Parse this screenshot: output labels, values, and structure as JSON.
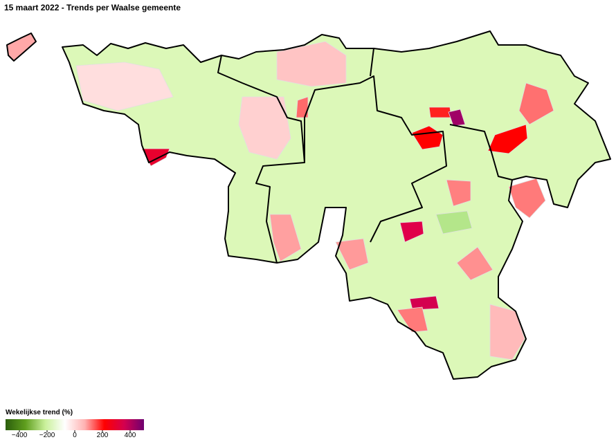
{
  "header": {
    "title": "15 maart 2022 - Trends per Waalse gemeente"
  },
  "legend": {
    "title": "Wekelijkse trend (%)",
    "lim": [
      -500,
      500
    ],
    "ticks": [
      {
        "value": -400,
        "label": "−400"
      },
      {
        "value": -200,
        "label": "−200"
      },
      0,
      200,
      400
    ],
    "colors": [
      "#2b5e0c",
      "#5f9e1e",
      "#c9f09a",
      "#ffffff",
      "#ffb3b3",
      "#ff0000",
      "#d4004f",
      "#6e0070"
    ]
  }
}
